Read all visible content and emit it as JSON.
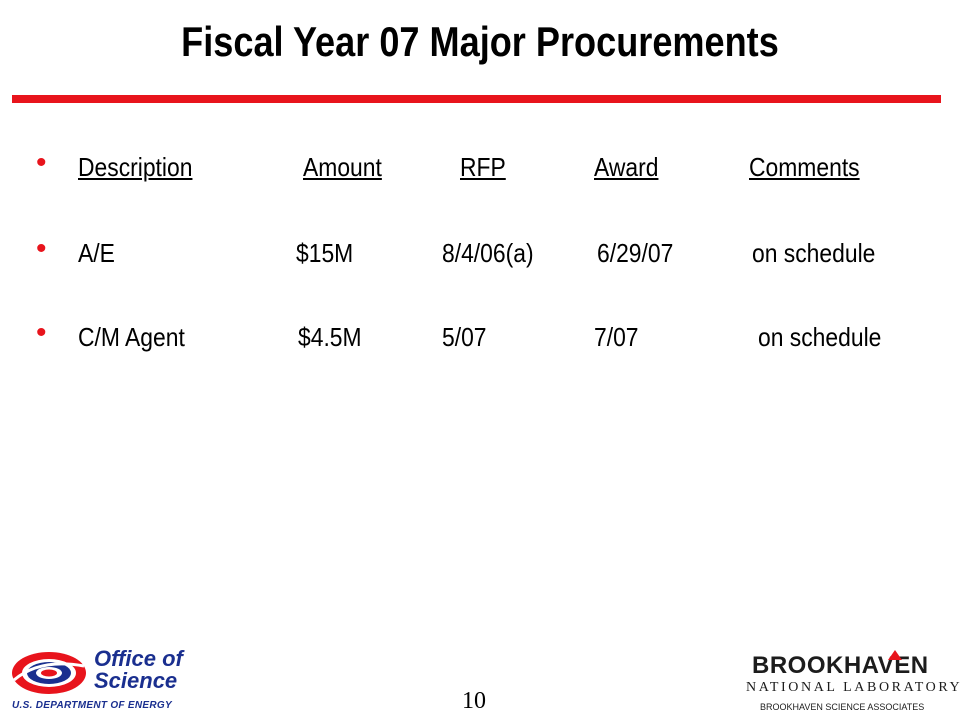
{
  "slide": {
    "title": "Fiscal Year 07 Major Procurements",
    "accent_color": "#e8141c",
    "bullet_color": "#e8141c",
    "bullet_glyph": "•"
  },
  "table": {
    "headers": {
      "description": "Description",
      "amount": "Amount",
      "rfp": "RFP",
      "award": "Award",
      "comments": "Comments"
    },
    "rows": [
      {
        "description": "A/E",
        "amount": "$15M",
        "rfp": "8/4/06(a)",
        "award": "6/29/07",
        "comments": "on schedule"
      },
      {
        "description": "C/M Agent",
        "amount": "$4.5M",
        "rfp": "5/07",
        "award": "7/07",
        "comments": "on schedule"
      }
    ]
  },
  "footer": {
    "page_number": "10",
    "doe_logo": {
      "line1": "Office of",
      "line2": "Science",
      "subline": "U.S. DEPARTMENT OF ENERGY",
      "color": "#1a2f8f",
      "swirl_colors": [
        "#e8141c",
        "#1a2f8f"
      ]
    },
    "bnl_logo": {
      "name": "BROOKHAVEN",
      "subtitle": "NATIONAL LABORATORY",
      "accent_color": "#e8141c"
    },
    "associates": "BROOKHAVEN SCIENCE ASSOCIATES"
  }
}
